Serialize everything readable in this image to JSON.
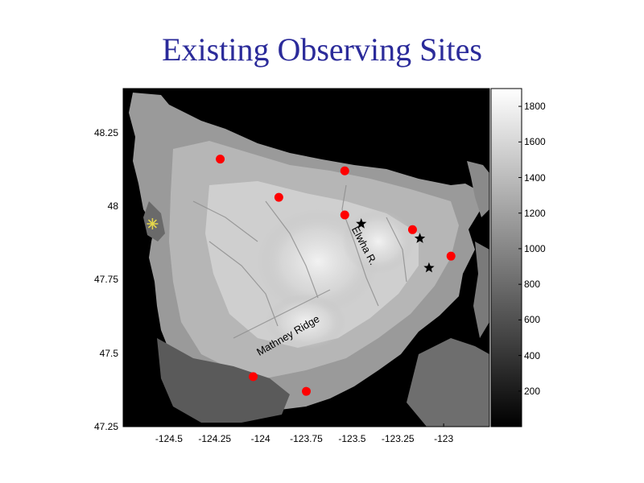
{
  "title": "Existing Observing Sites",
  "map": {
    "lon_range": [
      -124.75,
      -122.75
    ],
    "lat_range": [
      47.25,
      48.4
    ],
    "x_ticks": [
      {
        "value": -124.5,
        "label": "-124.5"
      },
      {
        "value": -124.25,
        "label": "-124.25"
      },
      {
        "value": -124.0,
        "label": "-124"
      },
      {
        "value": -123.75,
        "label": "-123.75"
      },
      {
        "value": -123.5,
        "label": "-123.5"
      },
      {
        "value": -123.25,
        "label": "-123.25"
      },
      {
        "value": -123.0,
        "label": "-123"
      }
    ],
    "y_ticks": [
      {
        "value": 48.25,
        "label": "48.25"
      },
      {
        "value": 48.0,
        "label": "48"
      },
      {
        "value": 47.75,
        "label": "47.75"
      },
      {
        "value": 47.5,
        "label": "47.5"
      },
      {
        "value": 47.25,
        "label": "47.25"
      }
    ],
    "annotations": [
      {
        "text": "Elwha R.",
        "lon": -123.45,
        "lat": 47.86
      },
      {
        "text": "Mathney Ridge",
        "lon": -123.84,
        "lat": 47.55
      }
    ],
    "colorbar": {
      "range": [
        0,
        1900
      ],
      "ticks": [
        {
          "value": 200,
          "label": "200"
        },
        {
          "value": 400,
          "label": "400"
        },
        {
          "value": 600,
          "label": "600"
        },
        {
          "value": 800,
          "label": "800"
        },
        {
          "value": 1000,
          "label": "1000"
        },
        {
          "value": 1200,
          "label": "1200"
        },
        {
          "value": 1400,
          "label": "1400"
        },
        {
          "value": 1600,
          "label": "1600"
        },
        {
          "value": 1800,
          "label": "1800"
        }
      ],
      "colors": [
        "#000000",
        "#ffffff"
      ]
    },
    "sites_red": [
      {
        "lon": -124.22,
        "lat": 48.16
      },
      {
        "lon": -123.9,
        "lat": 48.03
      },
      {
        "lon": -123.54,
        "lat": 48.12
      },
      {
        "lon": -123.54,
        "lat": 47.97
      },
      {
        "lon": -123.17,
        "lat": 47.92
      },
      {
        "lon": -122.96,
        "lat": 47.83
      },
      {
        "lon": -124.04,
        "lat": 47.42
      },
      {
        "lon": -123.75,
        "lat": 47.37
      }
    ],
    "sites_star": [
      {
        "lon": -123.45,
        "lat": 47.94
      },
      {
        "lon": -123.13,
        "lat": 47.89
      },
      {
        "lon": -123.08,
        "lat": 47.79
      }
    ],
    "sites_asterisk": [
      {
        "lon": -124.59,
        "lat": 47.94
      }
    ],
    "colors": {
      "title": "#2b2b9a",
      "water": "#000000",
      "red_site": "#ff0000",
      "star_site": "#000000",
      "asterisk_site": "#e6d84a"
    }
  }
}
